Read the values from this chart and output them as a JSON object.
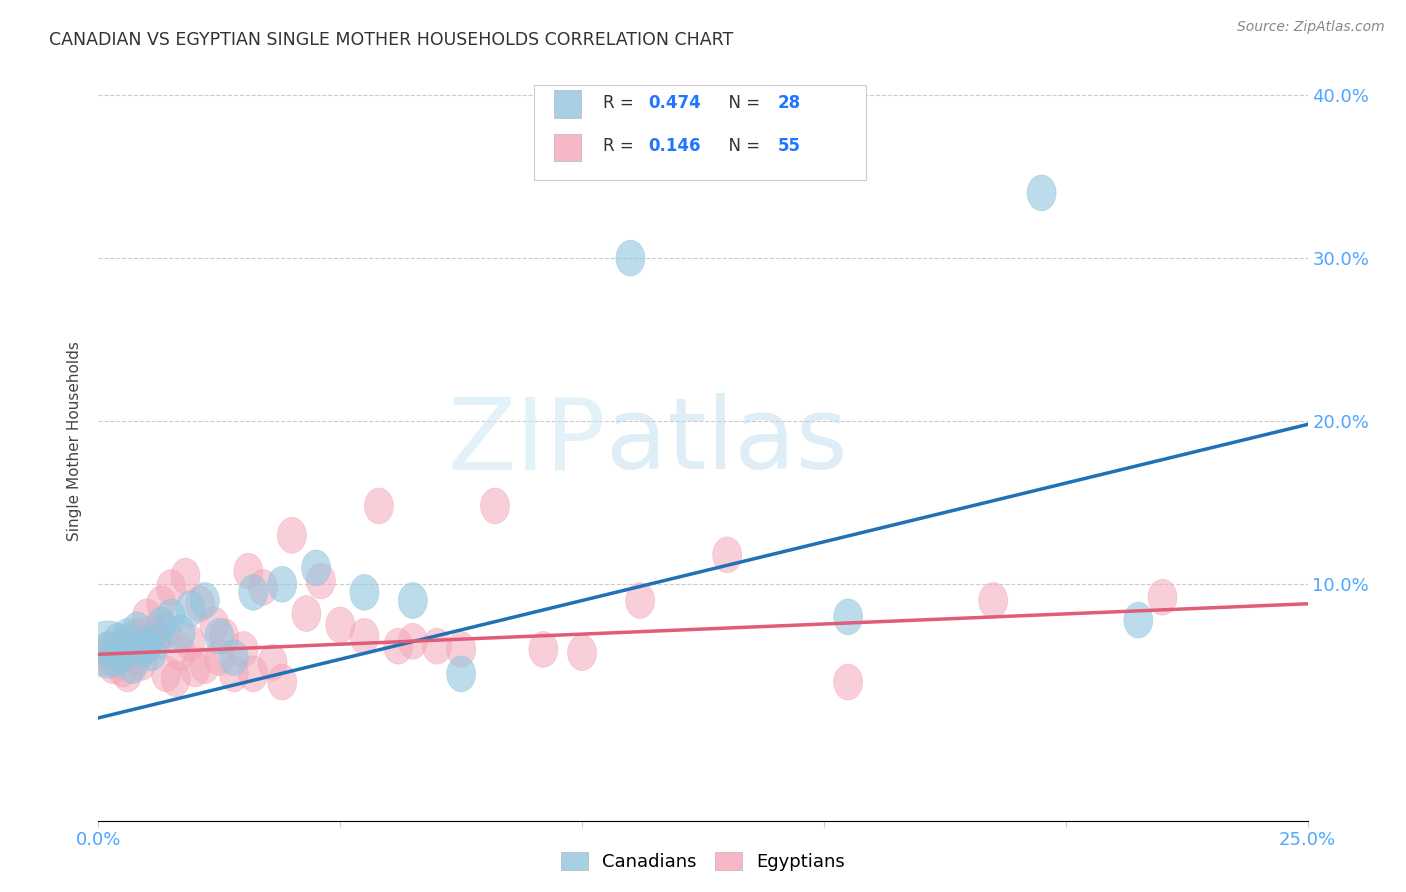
{
  "title": "CANADIAN VS EGYPTIAN SINGLE MOTHER HOUSEHOLDS CORRELATION CHART",
  "source": "Source: ZipAtlas.com",
  "ylabel": "Single Mother Households",
  "xmin": 0.0,
  "xmax": 0.25,
  "ymin": -0.045,
  "ymax": 0.42,
  "canadian_R": "0.474",
  "canadian_N": "28",
  "egyptian_R": "0.146",
  "egyptian_N": "55",
  "canadian_color": "#92c5de",
  "egyptian_color": "#f4a6b8",
  "canadian_line_color": "#2171b5",
  "egyptian_line_color": "#e05c77",
  "blue_line_x": [
    0.0,
    0.25
  ],
  "blue_line_y": [
    0.018,
    0.198
  ],
  "pink_line_x": [
    0.0,
    0.25
  ],
  "pink_line_y": [
    0.057,
    0.088
  ],
  "watermark_zip": "ZIP",
  "watermark_atlas": "atlas",
  "canadians_x": [
    0.002,
    0.003,
    0.004,
    0.005,
    0.006,
    0.007,
    0.008,
    0.009,
    0.01,
    0.011,
    0.012,
    0.013,
    0.015,
    0.017,
    0.019,
    0.022,
    0.025,
    0.028,
    0.032,
    0.038,
    0.045,
    0.055,
    0.065,
    0.075,
    0.11,
    0.155,
    0.195,
    0.215
  ],
  "canadians_y": [
    0.06,
    0.055,
    0.065,
    0.058,
    0.068,
    0.05,
    0.072,
    0.06,
    0.062,
    0.058,
    0.065,
    0.075,
    0.08,
    0.07,
    0.085,
    0.09,
    0.068,
    0.055,
    0.095,
    0.1,
    0.11,
    0.095,
    0.09,
    0.045,
    0.3,
    0.08,
    0.34,
    0.078
  ],
  "egyptians_x": [
    0.001,
    0.002,
    0.003,
    0.004,
    0.005,
    0.005,
    0.006,
    0.006,
    0.007,
    0.008,
    0.008,
    0.009,
    0.01,
    0.01,
    0.011,
    0.012,
    0.013,
    0.014,
    0.014,
    0.015,
    0.016,
    0.017,
    0.018,
    0.019,
    0.02,
    0.021,
    0.022,
    0.024,
    0.025,
    0.026,
    0.028,
    0.03,
    0.031,
    0.032,
    0.034,
    0.036,
    0.038,
    0.04,
    0.043,
    0.046,
    0.05,
    0.055,
    0.058,
    0.062,
    0.065,
    0.07,
    0.075,
    0.082,
    0.092,
    0.1,
    0.112,
    0.13,
    0.155,
    0.185,
    0.22
  ],
  "egyptians_y": [
    0.055,
    0.06,
    0.05,
    0.058,
    0.062,
    0.048,
    0.065,
    0.045,
    0.06,
    0.068,
    0.055,
    0.052,
    0.062,
    0.08,
    0.07,
    0.068,
    0.088,
    0.072,
    0.045,
    0.098,
    0.042,
    0.058,
    0.105,
    0.064,
    0.048,
    0.088,
    0.05,
    0.075,
    0.055,
    0.068,
    0.045,
    0.06,
    0.108,
    0.045,
    0.098,
    0.052,
    0.04,
    0.13,
    0.082,
    0.102,
    0.075,
    0.068,
    0.148,
    0.062,
    0.065,
    0.062,
    0.06,
    0.148,
    0.06,
    0.058,
    0.09,
    0.118,
    0.04,
    0.09,
    0.092
  ],
  "yticks": [
    0.1,
    0.2,
    0.3,
    0.4
  ],
  "ytick_labels": [
    "10.0%",
    "20.0%",
    "30.0%",
    "40.0%"
  ],
  "xtick_left_label": "0.0%",
  "xtick_right_label": "25.0%",
  "grid_color": "#cccccc",
  "tick_color": "#4da6ff",
  "axis_color": "#cccccc"
}
